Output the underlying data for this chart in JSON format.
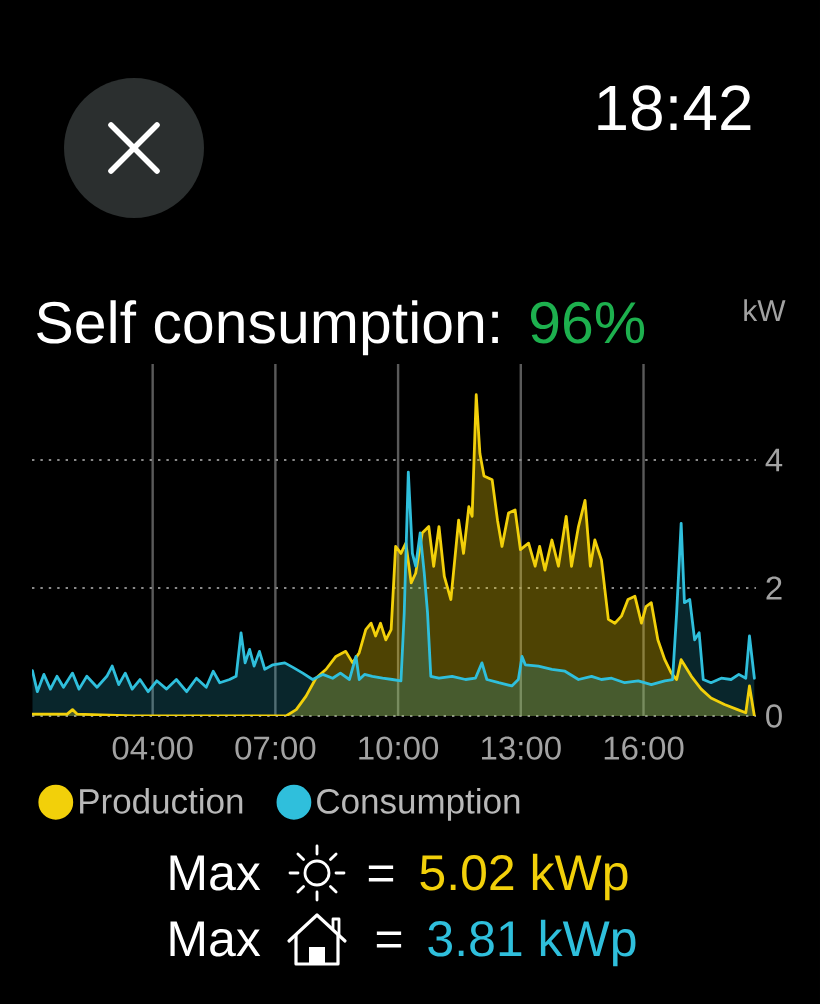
{
  "chart_data": {
    "type": "area",
    "title": "Self consumption:",
    "subtitle": "96%",
    "ylabel": "kW",
    "annotations": [
      "18:42",
      "Max",
      "=",
      "5.02 kWp",
      "Max",
      "=",
      "3.81 kWp"
    ],
    "xlim": [
      1.05,
      18.75
    ],
    "xticks": [
      {
        "value": 4,
        "label": "04:00"
      },
      {
        "value": 7,
        "label": "07:00"
      },
      {
        "value": 10,
        "label": "10:00"
      },
      {
        "value": 13,
        "label": "13:00"
      },
      {
        "value": 16,
        "label": "16:00"
      }
    ],
    "ylim": [
      0,
      5.5
    ],
    "yticks": [
      0,
      2,
      4
    ],
    "grid": true,
    "legend": "bottom left",
    "series": [
      {
        "name": "Production",
        "color": "#f2d00a",
        "x": [
          1.06,
          1.91,
          2.04,
          2.15,
          3.53,
          5.15,
          7.26,
          7.51,
          7.75,
          7.99,
          8.24,
          8.48,
          8.72,
          8.89,
          9.05,
          9.21,
          9.34,
          9.45,
          9.57,
          9.7,
          9.83,
          9.94,
          10.07,
          10.19,
          10.32,
          10.43,
          10.59,
          10.75,
          10.87,
          11.0,
          11.13,
          11.29,
          11.48,
          11.6,
          11.73,
          11.81,
          11.91,
          12.0,
          12.1,
          12.3,
          12.43,
          12.54,
          12.7,
          12.86,
          12.99,
          13.19,
          13.35,
          13.46,
          13.59,
          13.76,
          13.92,
          14.11,
          14.24,
          14.41,
          14.57,
          14.7,
          14.81,
          14.97,
          15.14,
          15.3,
          15.46,
          15.62,
          15.79,
          15.95,
          16.06,
          16.19,
          16.35,
          16.52,
          16.68,
          16.81,
          16.92,
          17.17,
          17.41,
          17.65,
          17.98,
          18.3,
          18.5,
          18.59,
          18.71
        ],
        "values": [
          0.03,
          0.03,
          0.1,
          0.03,
          0,
          0,
          0,
          0.1,
          0.31,
          0.59,
          0.73,
          0.93,
          1.01,
          0.83,
          0.99,
          1.35,
          1.45,
          1.25,
          1.45,
          1.19,
          1.35,
          2.65,
          2.54,
          2.7,
          2.08,
          2.23,
          2.86,
          2.96,
          2.34,
          2.96,
          2.18,
          1.82,
          3.06,
          2.54,
          3.27,
          3.12,
          5.02,
          4.1,
          3.75,
          3.69,
          3.06,
          2.65,
          3.17,
          3.22,
          2.6,
          2.7,
          2.34,
          2.65,
          2.28,
          2.75,
          2.34,
          3.12,
          2.34,
          2.96,
          3.37,
          2.34,
          2.75,
          2.44,
          1.51,
          1.45,
          1.56,
          1.82,
          1.87,
          1.45,
          1.71,
          1.77,
          1.19,
          0.88,
          0.67,
          0.57,
          0.88,
          0.62,
          0.42,
          0.28,
          0.18,
          0.1,
          0.05,
          0.47,
          0
        ]
      },
      {
        "name": "Consumption",
        "color": "#2fbfdc",
        "x": [
          1.06,
          1.18,
          1.34,
          1.5,
          1.66,
          1.82,
          2.04,
          2.2,
          2.39,
          2.64,
          2.88,
          3.01,
          3.17,
          3.33,
          3.5,
          3.69,
          3.89,
          4.1,
          4.34,
          4.58,
          4.83,
          5.07,
          5.31,
          5.48,
          5.64,
          5.88,
          6.04,
          6.16,
          6.26,
          6.37,
          6.48,
          6.61,
          6.74,
          6.94,
          7.23,
          7.43,
          7.67,
          7.91,
          8.16,
          8.4,
          8.59,
          8.81,
          8.97,
          9.05,
          9.18,
          9.37,
          9.62,
          9.86,
          10.07,
          10.15,
          10.25,
          10.35,
          10.43,
          10.54,
          10.64,
          10.72,
          10.8,
          11.0,
          11.32,
          11.65,
          11.89,
          12.05,
          12.17,
          12.46,
          12.78,
          12.94,
          13.03,
          13.11,
          13.43,
          13.76,
          14.08,
          14.41,
          14.73,
          14.97,
          15.22,
          15.54,
          15.87,
          16.19,
          16.52,
          16.71,
          16.81,
          16.92,
          17.0,
          17.13,
          17.25,
          17.36,
          17.46,
          17.65,
          17.9,
          18.14,
          18.33,
          18.5,
          18.59,
          18.71
        ],
        "values": [
          0.71,
          0.38,
          0.65,
          0.42,
          0.62,
          0.45,
          0.67,
          0.42,
          0.62,
          0.45,
          0.62,
          0.78,
          0.49,
          0.67,
          0.42,
          0.57,
          0.38,
          0.55,
          0.42,
          0.57,
          0.38,
          0.59,
          0.45,
          0.7,
          0.52,
          0.57,
          0.62,
          1.3,
          0.83,
          1.04,
          0.78,
          1.01,
          0.73,
          0.8,
          0.83,
          0.76,
          0.67,
          0.57,
          0.65,
          0.59,
          0.67,
          0.57,
          0.93,
          0.57,
          0.65,
          0.62,
          0.59,
          0.57,
          0.55,
          1.61,
          3.81,
          2.54,
          2.34,
          2.86,
          2.23,
          1.61,
          0.62,
          0.59,
          0.62,
          0.57,
          0.59,
          0.83,
          0.57,
          0.52,
          0.47,
          0.57,
          0.93,
          0.8,
          0.78,
          0.73,
          0.7,
          0.57,
          0.62,
          0.57,
          0.59,
          0.52,
          0.55,
          0.49,
          0.55,
          0.57,
          1.61,
          3.01,
          1.77,
          1.82,
          1.19,
          1.3,
          0.57,
          0.52,
          0.59,
          0.57,
          0.65,
          0.59,
          1.25,
          0.59
        ]
      }
    ]
  }
}
